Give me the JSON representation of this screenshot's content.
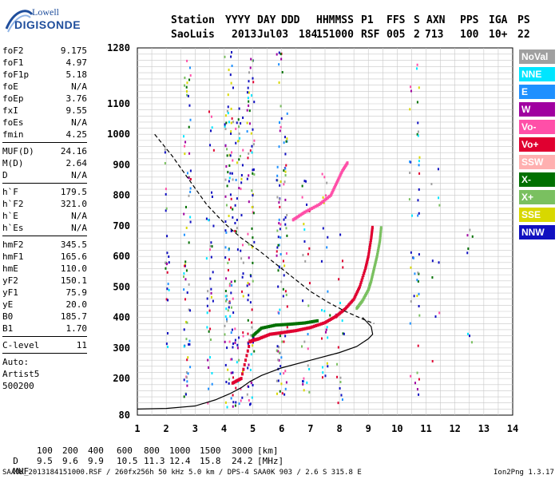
{
  "logo": {
    "line1": "Lowell",
    "line2": "DIGISONDE"
  },
  "header": {
    "labels": [
      "Station",
      "YYYY",
      "DAY",
      "DDD",
      "HHMMSS",
      "P1",
      "FFS",
      "S",
      "AXN",
      "PPS",
      "IGA",
      "PS"
    ],
    "values": [
      "SaoLuis",
      "2013",
      "Jul03",
      "184",
      "151000",
      "RSF",
      "005",
      "2",
      "713",
      "100",
      "10+",
      "22"
    ]
  },
  "params": {
    "group1": [
      {
        "k": "foF2",
        "v": "9.175"
      },
      {
        "k": "foF1",
        "v": "4.97"
      },
      {
        "k": "foF1p",
        "v": "5.18"
      },
      {
        "k": "foE",
        "v": "N/A"
      },
      {
        "k": "foEp",
        "v": "3.76"
      },
      {
        "k": "fxI",
        "v": "9.55"
      },
      {
        "k": "foEs",
        "v": "N/A"
      },
      {
        "k": "fmin",
        "v": "4.25"
      }
    ],
    "group2": [
      {
        "k": "MUF(D)",
        "v": "24.16"
      },
      {
        "k": "M(D)",
        "v": "2.64"
      },
      {
        "k": "D",
        "v": "N/A"
      }
    ],
    "group3": [
      {
        "k": "h`F",
        "v": "179.5"
      },
      {
        "k": "h`F2",
        "v": "321.0"
      },
      {
        "k": "h`E",
        "v": "N/A"
      },
      {
        "k": "h`Es",
        "v": "N/A"
      }
    ],
    "group4": [
      {
        "k": "hmF2",
        "v": "345.5"
      },
      {
        "k": "hmF1",
        "v": "165.6"
      },
      {
        "k": "hmE",
        "v": "110.0"
      },
      {
        "k": "yF2",
        "v": "150.1"
      },
      {
        "k": "yF1",
        "v": "75.9"
      },
      {
        "k": "yE",
        "v": "20.0"
      },
      {
        "k": "B0",
        "v": "185.7"
      },
      {
        "k": "B1",
        "v": "1.70"
      }
    ],
    "group5": [
      {
        "k": "C-level",
        "v": "11"
      }
    ],
    "auto": [
      "Auto:",
      "Artist5",
      "500200"
    ]
  },
  "legend": [
    {
      "name": "NoVal",
      "color": "#a0a0a0"
    },
    {
      "name": "NNE",
      "color": "#00e5ff"
    },
    {
      "name": "E",
      "color": "#1e90ff"
    },
    {
      "name": "W",
      "color": "#a000a0"
    },
    {
      "name": "Vo-",
      "color": "#ff4fa8"
    },
    {
      "name": "Vo+",
      "color": "#e00030"
    },
    {
      "name": "SSW",
      "color": "#ffb0b0"
    },
    {
      "name": "X-",
      "color": "#007000"
    },
    {
      "name": "X+",
      "color": "#7ac060"
    },
    {
      "name": "SSE",
      "color": "#d8d800"
    },
    {
      "name": "NNW",
      "color": "#1010c0"
    }
  ],
  "chart_data": {
    "type": "scatter",
    "xlabel": "",
    "ylabel": "",
    "xlim": [
      1,
      14
    ],
    "ylim": [
      80,
      1280
    ],
    "xticks": [
      "1",
      "2",
      "3",
      "4",
      "5",
      "6",
      "7",
      "8",
      "9",
      "10",
      "11",
      "12",
      "13",
      "14"
    ],
    "yticks": [
      "80",
      "200",
      "300",
      "400",
      "500",
      "600",
      "700",
      "800",
      "900",
      "1000",
      "1100",
      "1280"
    ],
    "grid": true,
    "series": [
      {
        "name": "Vo+",
        "color": "#e00030",
        "x": [
          4.3,
          4.6,
          4.9,
          5.0,
          5.2,
          5.6,
          6.0,
          6.5,
          7.0,
          7.5,
          7.9,
          8.2,
          8.5,
          8.7,
          8.9,
          9.0,
          9.1,
          9.15
        ],
        "y": [
          185,
          200,
          320,
          325,
          330,
          345,
          350,
          357,
          367,
          383,
          405,
          428,
          460,
          500,
          560,
          600,
          660,
          700
        ]
      },
      {
        "name": "X+",
        "color": "#7ac060",
        "x": [
          8.6,
          8.8,
          9.0,
          9.1,
          9.2,
          9.3,
          9.4,
          9.45
        ],
        "y": [
          430,
          455,
          490,
          520,
          560,
          600,
          650,
          700
        ]
      },
      {
        "name": "X-",
        "color": "#007000",
        "x": [
          5.0,
          5.3,
          5.8,
          6.3,
          6.8,
          7.3
        ],
        "y": [
          340,
          365,
          375,
          378,
          382,
          390
        ]
      },
      {
        "name": "Vo-",
        "color": "#ff4fa8",
        "x": [
          6.4,
          6.8,
          7.3,
          7.7,
          7.9,
          8.1,
          8.3
        ],
        "y": [
          720,
          745,
          770,
          800,
          840,
          880,
          910
        ]
      },
      {
        "name": "profile",
        "color": "#000000",
        "x": [
          1.0,
          2.0,
          3.0,
          3.7,
          4.2,
          4.6,
          4.9,
          5.3,
          6.0,
          7.0,
          8.0,
          8.6,
          9.0,
          9.15,
          9.1,
          8.8
        ],
        "y": [
          100,
          102,
          110,
          130,
          150,
          170,
          190,
          210,
          235,
          260,
          285,
          305,
          330,
          345,
          370,
          400
        ]
      },
      {
        "name": "muf",
        "color": "#000000",
        "x": [
          1.6,
          2.2,
          2.8,
          3.4,
          4.0,
          4.6,
          5.2,
          5.8,
          6.4,
          7.0,
          7.6,
          8.2,
          8.8,
          9.2
        ],
        "y": [
          1000,
          930,
          850,
          770,
          710,
          660,
          620,
          575,
          530,
          485,
          450,
          420,
          395,
          380
        ]
      }
    ]
  },
  "bottom": {
    "d_label": "D",
    "d_values": [
      "100",
      "200",
      "400",
      "600",
      "800",
      "1000",
      "1500",
      "3000",
      "[km]"
    ],
    "muf_label": "MUF",
    "muf_values": [
      "9.5",
      "9.6",
      "9.9",
      "10.5",
      "11.3",
      "12.4",
      "15.8",
      "24.2",
      "[MHz]"
    ],
    "footer": "SAA0K_2013184151000.RSF / 260fx256h 50 kHz 5.0 km / DPS-4 SAA0K 903 / 2.6 S 315.8 E",
    "version": "Ion2Png 1.3.17"
  }
}
